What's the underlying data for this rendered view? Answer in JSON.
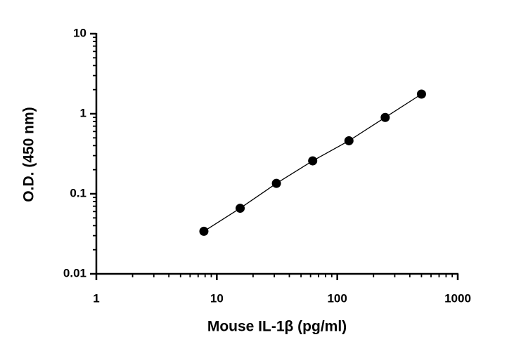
{
  "chart_data": {
    "type": "scatter",
    "x_label": "Mouse IL-1β (pg/ml)",
    "y_label": "O.D. (450 nm)",
    "x_scale": "log",
    "y_scale": "log",
    "xlim": [
      1,
      1000
    ],
    "xticks": [
      1,
      10,
      100,
      1000
    ],
    "ylim": [
      0.01,
      10
    ],
    "yticks": [
      0.01,
      0.1,
      1,
      10
    ],
    "series": [
      {
        "color": "#000000",
        "x": [
          7.8125,
          15.625,
          31.25,
          62.5,
          125,
          250,
          500
        ],
        "values": [
          0.034,
          0.066,
          0.135,
          0.258,
          0.46,
          0.9,
          1.76
        ]
      }
    ]
  }
}
